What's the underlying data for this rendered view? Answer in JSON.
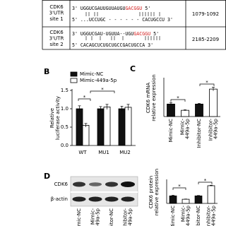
{
  "panel_labels": [
    "B",
    "C",
    "D"
  ],
  "table": {
    "rows": [
      {
        "label": [
          "CDK6",
          "3'UTR",
          "site 1"
        ],
        "mirna": [
          "3' UGGUCGAUUGUUAUGU",
          "GACGGU",
          " 5'"
        ],
        "mrna": "5' ...UCCUGC - - - - - - CACUGCCU 3'",
        "position": "1079-1092"
      },
      {
        "label": [
          "CDK6",
          "3'UTR",
          "site 2"
        ],
        "mirna": [
          "3' UGGUCGAU-UGUUA--UGU",
          "GACGGU",
          " 5'"
        ],
        "mrna": "5' CACAGCUCUGCUGCCGACUGCCA 3'",
        "position": "2185-2209"
      }
    ]
  },
  "blot": {
    "proteins": [
      "CDK6",
      "β-actin"
    ]
  },
  "chart_data": [
    {
      "type": "bar",
      "ylabel": [
        "Relative",
        "luciferase activity"
      ],
      "categories": [
        [
          "WT"
        ],
        [
          "MU1"
        ],
        [
          "MU2"
        ]
      ],
      "series": [
        {
          "name": "Mimic-NC",
          "color": "#111111",
          "values": [
            1.0,
            1.0,
            1.0
          ],
          "errors": [
            0.08,
            0.06,
            0.07
          ]
        },
        {
          "name": "Mimic-449a-5p",
          "color": "#ffffff",
          "values": [
            0.55,
            1.05,
            1.04
          ],
          "errors": [
            0.05,
            0.07,
            0.08
          ]
        }
      ],
      "ylim": [
        0,
        1.5
      ],
      "yticks": [
        {
          "value": 0,
          "label": "0.0"
        },
        0.5,
        {
          "value": 1,
          "label": "1.0"
        },
        1.5
      ],
      "annotations": [
        "*",
        "*"
      ]
    },
    {
      "type": "bar",
      "ylabel": [
        "CDK6 mRNA",
        "relative expression"
      ],
      "categories": [
        [
          "Mimic-NC"
        ],
        [
          "Mimic-",
          "449a-5p"
        ],
        [
          "Inhibitor-NC"
        ],
        [
          "Inhibitor-",
          "449a-5p"
        ]
      ],
      "values": [
        1.0,
        0.5,
        1.0,
        2.2
      ],
      "errors": [
        0.12,
        0.04,
        0.05,
        0.15
      ],
      "colors": [
        "#111111",
        "#ffffff",
        "#111111",
        "#ffffff"
      ],
      "ylim": [
        0,
        3
      ],
      "annotations": [
        "*",
        "*"
      ]
    },
    {
      "type": "bar",
      "ylabel": [
        "CDK6 protein",
        "relative expression"
      ],
      "categories": [
        [
          "Mimic-NC"
        ],
        [
          "Mimic-",
          "449a-5p"
        ],
        [
          "Inhibitor-NC"
        ],
        [
          "Inhibitor-",
          "449a-5p"
        ]
      ],
      "values": [
        1.0,
        0.55,
        1.0,
        2.35
      ],
      "errors": [
        0.07,
        0.03,
        0.05,
        0.06
      ],
      "colors": [
        "#111111",
        "#ffffff",
        "#111111",
        "#ffffff"
      ],
      "ylim": [
        0,
        3
      ],
      "annotations": [
        "*",
        "*"
      ]
    }
  ]
}
